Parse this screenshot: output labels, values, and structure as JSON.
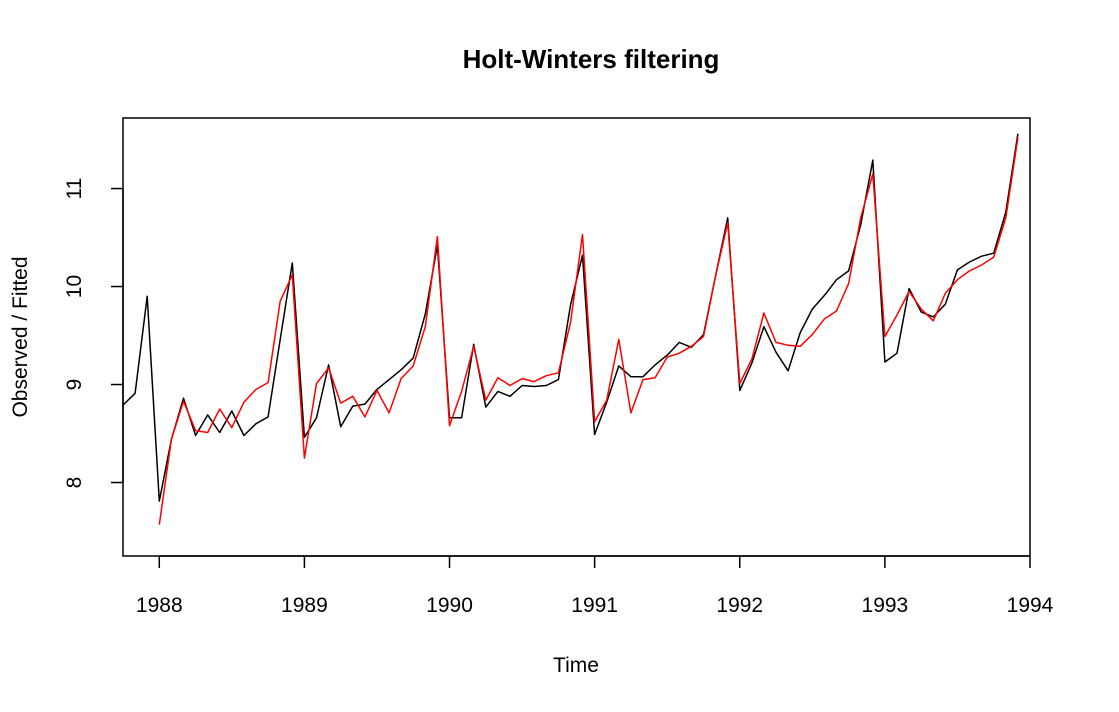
{
  "chart_data": {
    "type": "line",
    "title": "Holt-Winters filtering",
    "xlabel": "Time",
    "ylabel": "Observed / Fitted",
    "xlim": [
      1987.75,
      1994.0
    ],
    "ylim": [
      7.25,
      11.72
    ],
    "x_ticks": [
      {
        "value": 1988,
        "label": "1988"
      },
      {
        "value": 1989,
        "label": "1989"
      },
      {
        "value": 1990,
        "label": "1990"
      },
      {
        "value": 1991,
        "label": "1991"
      },
      {
        "value": 1992,
        "label": "1992"
      },
      {
        "value": 1993,
        "label": "1993"
      },
      {
        "value": 1994,
        "label": "1994"
      }
    ],
    "y_ticks": [
      {
        "value": 8,
        "label": "8"
      },
      {
        "value": 9,
        "label": "9"
      },
      {
        "value": 10,
        "label": "10"
      },
      {
        "value": 11,
        "label": "11"
      }
    ],
    "grid": false,
    "series": [
      {
        "role": "observed",
        "color": "#000000",
        "x_start": 1987.75,
        "x_step": 0.0833333,
        "values": [
          8.79,
          8.91,
          9.9,
          7.81,
          8.44,
          8.86,
          8.48,
          8.69,
          8.51,
          8.73,
          8.48,
          8.6,
          8.67,
          9.46,
          10.24,
          8.46,
          8.66,
          9.2,
          8.57,
          8.78,
          8.8,
          8.95,
          9.05,
          9.15,
          9.27,
          9.72,
          10.42,
          8.66,
          8.66,
          9.41,
          8.77,
          8.93,
          8.88,
          8.99,
          8.98,
          8.99,
          9.05,
          9.81,
          10.32,
          8.49,
          8.82,
          9.19,
          9.08,
          9.08,
          9.2,
          9.3,
          9.43,
          9.38,
          9.51,
          10.11,
          10.7,
          8.94,
          9.22,
          9.59,
          9.33,
          9.14,
          9.53,
          9.77,
          9.91,
          10.07,
          10.16,
          10.63,
          11.29,
          9.23,
          9.32,
          9.98,
          9.74,
          9.69,
          9.82,
          10.17,
          10.25,
          10.31,
          10.34,
          10.76,
          11.56
        ]
      },
      {
        "role": "fitted",
        "color": "#ff0000",
        "x_start": 1988.0,
        "x_step": 0.0833333,
        "values": [
          7.57,
          8.44,
          8.83,
          8.53,
          8.51,
          8.75,
          8.56,
          8.82,
          8.95,
          9.02,
          9.85,
          10.12,
          8.25,
          9.01,
          9.17,
          8.81,
          8.88,
          8.67,
          8.94,
          8.71,
          9.06,
          9.19,
          9.59,
          10.51,
          8.58,
          8.93,
          9.39,
          8.84,
          9.07,
          8.99,
          9.06,
          9.03,
          9.09,
          9.12,
          9.63,
          10.53,
          8.62,
          8.84,
          9.46,
          8.71,
          9.05,
          9.07,
          9.28,
          9.32,
          9.39,
          9.49,
          10.11,
          10.65,
          9.01,
          9.26,
          9.73,
          9.43,
          9.4,
          9.39,
          9.51,
          9.67,
          9.75,
          10.03,
          10.7,
          11.15,
          9.49,
          9.71,
          9.95,
          9.77,
          9.65,
          9.93,
          10.07,
          10.16,
          10.22,
          10.3,
          10.7,
          11.52
        ]
      }
    ]
  }
}
